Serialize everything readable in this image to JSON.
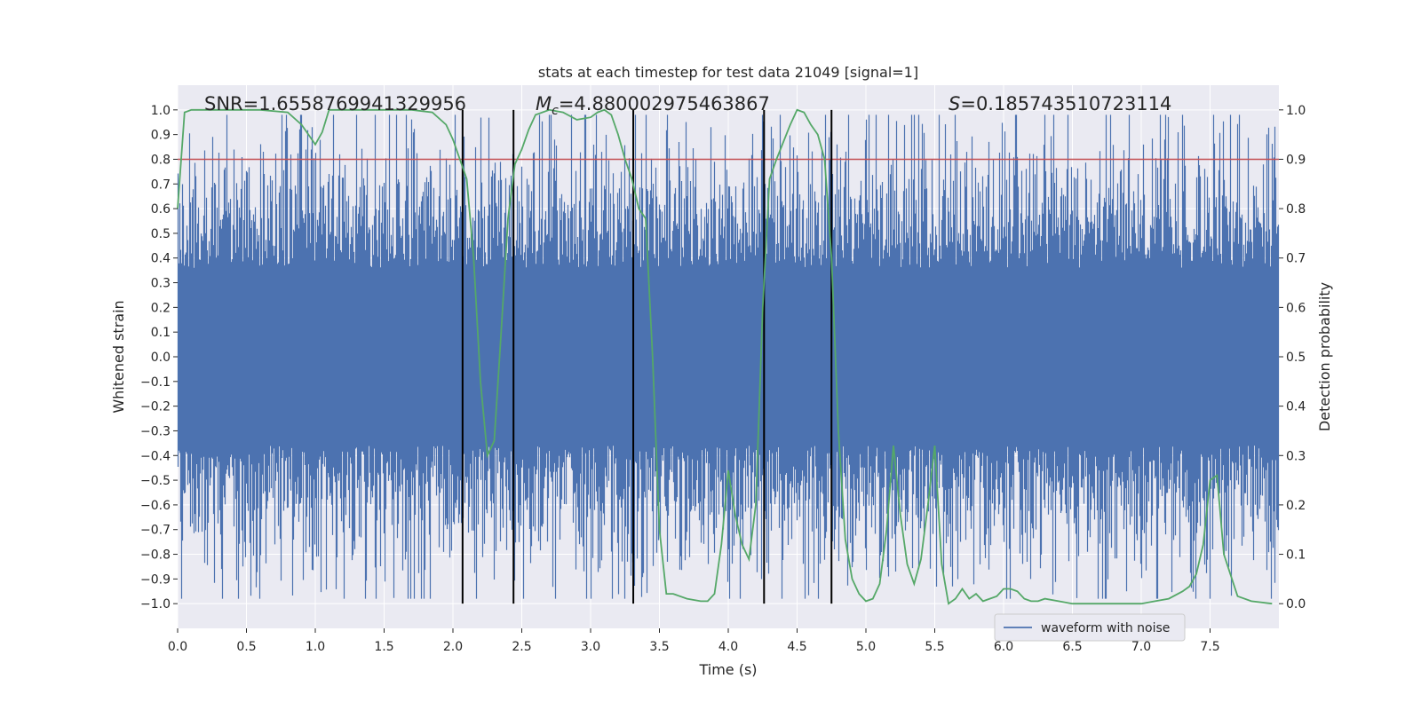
{
  "chart_data": {
    "type": "line",
    "title": "stats at each timestep for test data 21049 [signal=1]",
    "xlabel": "Time (s)",
    "ylabel_left": "Whitened strain",
    "ylabel_right": "Detection probability",
    "xlim": [
      0.0,
      8.0
    ],
    "ylim_left": [
      -1.1,
      1.1
    ],
    "ylim_right": [
      -0.05,
      1.05
    ],
    "xticks": [
      "0.0",
      "0.5",
      "1.0",
      "1.5",
      "2.0",
      "2.5",
      "3.0",
      "3.5",
      "4.0",
      "4.5",
      "5.0",
      "5.5",
      "6.0",
      "6.5",
      "7.0",
      "7.5"
    ],
    "xtick_values": [
      0.0,
      0.5,
      1.0,
      1.5,
      2.0,
      2.5,
      3.0,
      3.5,
      4.0,
      4.5,
      5.0,
      5.5,
      6.0,
      6.5,
      7.0,
      7.5
    ],
    "yticks_left": [
      "1.0",
      "0.9",
      "0.8",
      "0.7",
      "0.6",
      "0.5",
      "0.4",
      "0.3",
      "0.2",
      "0.1",
      "0.0",
      "−0.1",
      "−0.2",
      "−0.3",
      "−0.4",
      "−0.5",
      "−0.6",
      "−0.7",
      "−0.8",
      "−0.9",
      "−1.0"
    ],
    "ytick_values_left": [
      1.0,
      0.9,
      0.8,
      0.7,
      0.6,
      0.5,
      0.4,
      0.3,
      0.2,
      0.1,
      0.0,
      -0.1,
      -0.2,
      -0.3,
      -0.4,
      -0.5,
      -0.6,
      -0.7,
      -0.8,
      -0.9,
      -1.0
    ],
    "yticks_right": [
      "1.0",
      "0.9",
      "0.8",
      "0.7",
      "0.6",
      "0.5",
      "0.4",
      "0.3",
      "0.2",
      "0.1",
      "0.0"
    ],
    "ytick_values_right": [
      1.0,
      0.9,
      0.8,
      0.7,
      0.6,
      0.5,
      0.4,
      0.3,
      0.2,
      0.1,
      0.0
    ],
    "annotations": {
      "snr": "SNR=1.6558769941329956",
      "mc_symbol": "M",
      "mc_sub": "c",
      "mc_value": "=4.880002975463867",
      "s_symbol": "S",
      "s_value": "=0.185743510723114"
    },
    "threshold": {
      "value": 0.9,
      "axis": "right",
      "color": "#c44e52"
    },
    "vertical_lines": [
      2.07,
      2.44,
      3.31,
      4.26,
      4.75
    ],
    "detection_probability": {
      "name": "Detection probability",
      "color": "#55a868",
      "x": [
        0.0,
        0.05,
        0.1,
        0.2,
        0.4,
        0.6,
        0.8,
        0.9,
        0.95,
        1.0,
        1.05,
        1.1,
        1.3,
        1.5,
        1.7,
        1.85,
        1.95,
        2.0,
        2.05,
        2.1,
        2.15,
        2.2,
        2.25,
        2.3,
        2.35,
        2.4,
        2.45,
        2.5,
        2.55,
        2.6,
        2.7,
        2.8,
        2.9,
        3.0,
        3.05,
        3.1,
        3.15,
        3.2,
        3.25,
        3.3,
        3.35,
        3.4,
        3.45,
        3.5,
        3.55,
        3.6,
        3.7,
        3.8,
        3.85,
        3.9,
        3.95,
        4.0,
        4.05,
        4.1,
        4.15,
        4.2,
        4.25,
        4.3,
        4.35,
        4.45,
        4.5,
        4.55,
        4.6,
        4.65,
        4.7,
        4.75,
        4.8,
        4.85,
        4.9,
        4.95,
        5.0,
        5.05,
        5.1,
        5.15,
        5.2,
        5.25,
        5.3,
        5.35,
        5.4,
        5.45,
        5.5,
        5.55,
        5.6,
        5.65,
        5.7,
        5.75,
        5.8,
        5.85,
        5.9,
        5.95,
        6.0,
        6.05,
        6.1,
        6.15,
        6.2,
        6.25,
        6.3,
        6.4,
        6.5,
        6.6,
        6.8,
        7.0,
        7.1,
        7.2,
        7.3,
        7.35,
        7.4,
        7.45,
        7.5,
        7.55,
        7.6,
        7.7,
        7.8,
        7.95
      ],
      "y": [
        0.8,
        0.995,
        1.0,
        1.0,
        1.0,
        1.0,
        0.995,
        0.97,
        0.95,
        0.93,
        0.955,
        1.0,
        1.0,
        1.0,
        1.0,
        0.995,
        0.97,
        0.94,
        0.9,
        0.86,
        0.7,
        0.45,
        0.3,
        0.33,
        0.55,
        0.78,
        0.89,
        0.92,
        0.96,
        0.99,
        1.0,
        0.995,
        0.98,
        0.985,
        0.995,
        1.0,
        0.99,
        0.95,
        0.9,
        0.86,
        0.8,
        0.78,
        0.5,
        0.15,
        0.02,
        0.02,
        0.01,
        0.005,
        0.005,
        0.02,
        0.12,
        0.27,
        0.18,
        0.12,
        0.09,
        0.2,
        0.6,
        0.86,
        0.9,
        0.97,
        1.0,
        0.995,
        0.97,
        0.95,
        0.9,
        0.7,
        0.35,
        0.13,
        0.05,
        0.02,
        0.005,
        0.01,
        0.04,
        0.15,
        0.32,
        0.18,
        0.08,
        0.04,
        0.09,
        0.2,
        0.32,
        0.08,
        0.0,
        0.01,
        0.03,
        0.01,
        0.02,
        0.005,
        0.01,
        0.015,
        0.03,
        0.03,
        0.025,
        0.01,
        0.005,
        0.005,
        0.01,
        0.005,
        0.0,
        0.0,
        0.0,
        0.0,
        0.005,
        0.01,
        0.025,
        0.035,
        0.06,
        0.12,
        0.25,
        0.26,
        0.1,
        0.015,
        0.005,
        0.0
      ]
    },
    "waveform": {
      "name": "waveform with noise",
      "color": "#4c72b0",
      "x_range": [
        0.0,
        8.0
      ],
      "typical_amplitude": 0.4,
      "peak_amplitude": 0.98
    },
    "legend": {
      "entries": [
        "waveform with noise"
      ],
      "position": "lower right"
    }
  },
  "style": {
    "axes_bg": "#eaeaf2",
    "grid_color": "#ffffff",
    "text_color": "#262626",
    "tick_color": "#262626",
    "vline_color": "#000000"
  }
}
